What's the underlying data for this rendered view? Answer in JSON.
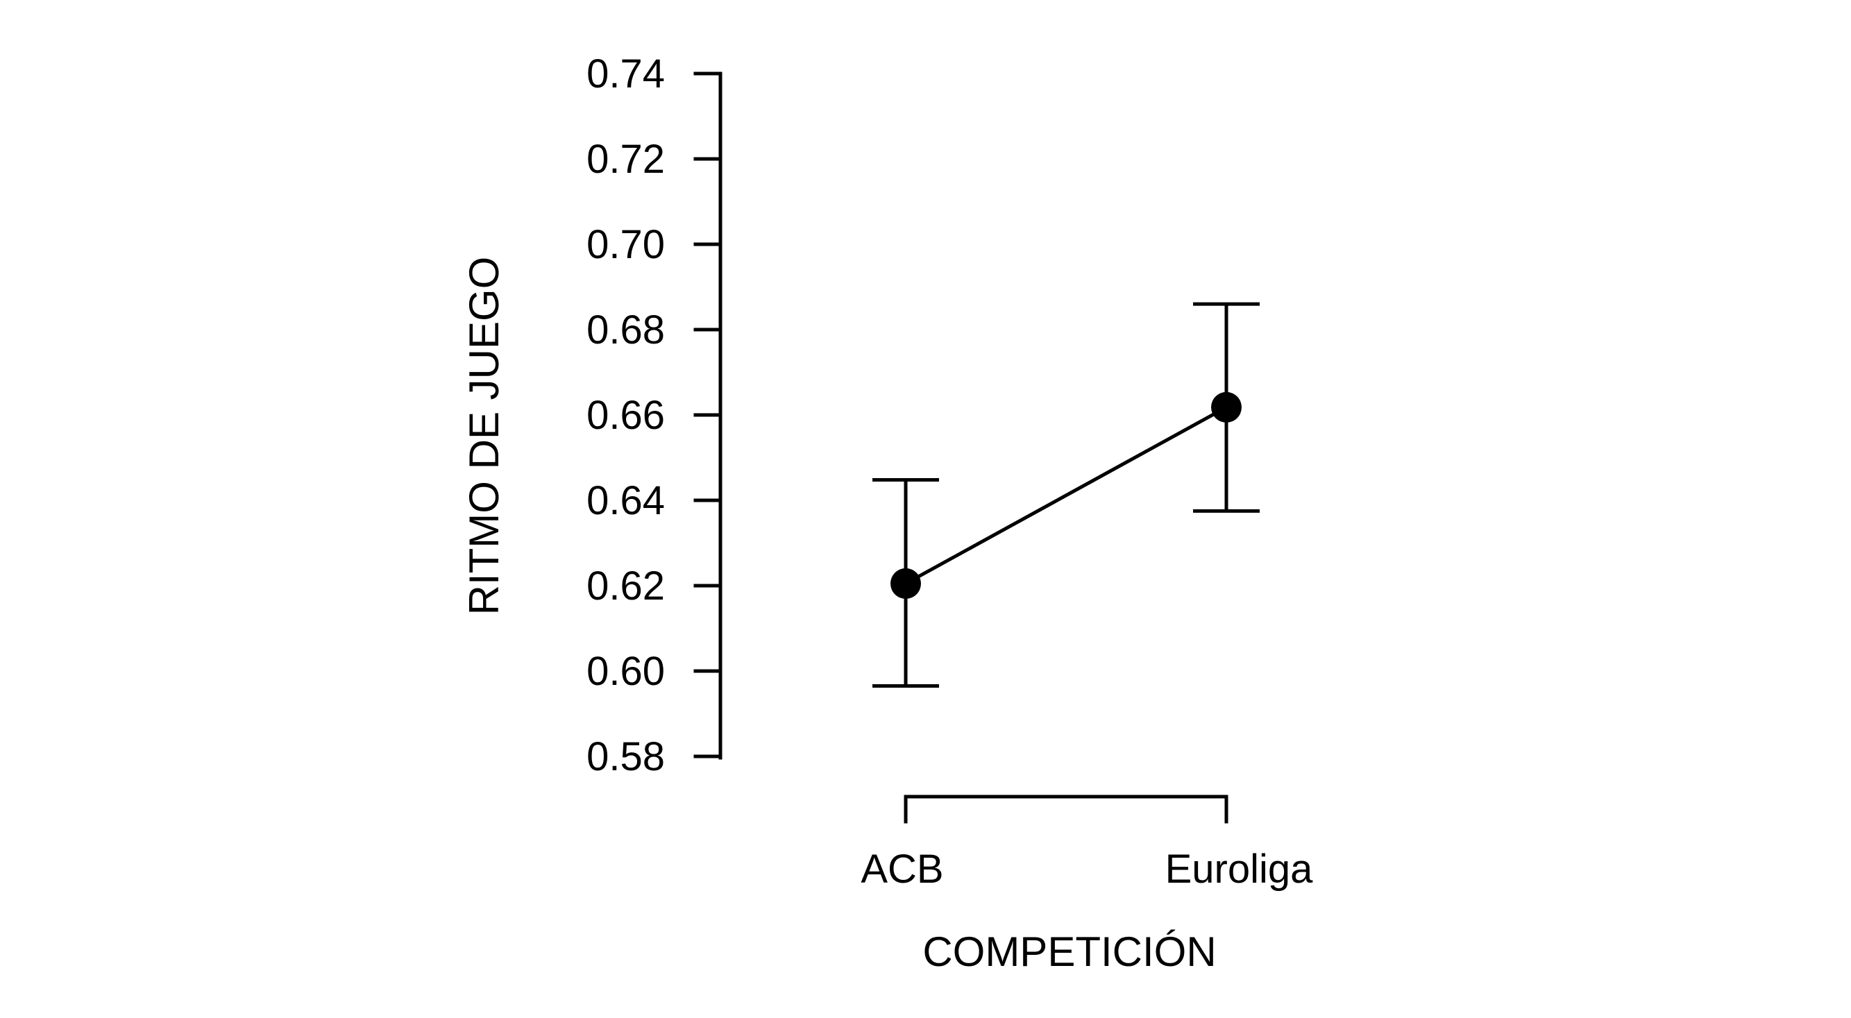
{
  "chart_data": {
    "type": "line",
    "xlabel": "COMPETICIÓN",
    "ylabel": "RITMO DE JUEGO",
    "categories": [
      "ACB",
      "Euroliga"
    ],
    "series": [
      {
        "values": [
          0.6205,
          0.6618
        ],
        "error_low": [
          0.5965,
          0.6375
        ],
        "error_high": [
          0.6448,
          0.686
        ]
      }
    ],
    "ylim": [
      0.58,
      0.74
    ],
    "yticks": [
      "0.58",
      "0.60",
      "0.62",
      "0.64",
      "0.66",
      "0.68",
      "0.70",
      "0.72",
      "0.74"
    ],
    "grid": false,
    "legend": "none",
    "colors": {
      "line": "#000000",
      "marker": "#000000"
    }
  }
}
